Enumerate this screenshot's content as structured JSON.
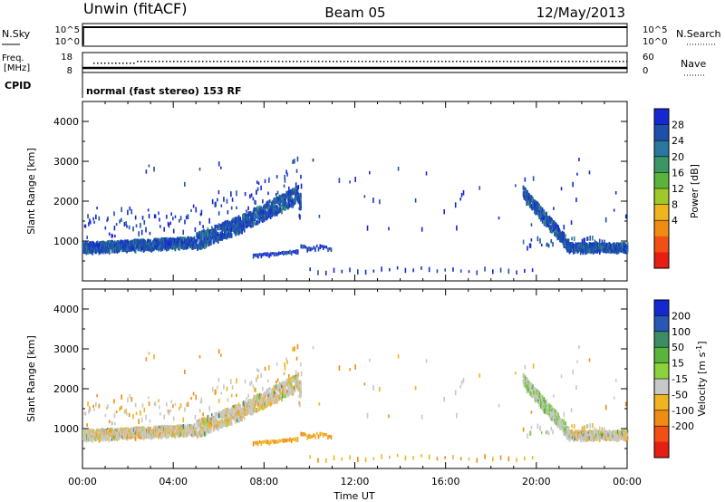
{
  "header": {
    "station": "Unwin (fitACF)",
    "beam": "Beam 05",
    "date": "12/May/2013"
  },
  "nsky_panel": {
    "left_label": "N.Sky",
    "right_label": "N.Search",
    "tick_top_left": "10^5",
    "tick_bottom_left": "10^0",
    "tick_top_right": "10^5",
    "tick_bottom_right": "10^0"
  },
  "freq_panel": {
    "left_label_line1": "Freq.",
    "left_label_line2": "[MHz]",
    "tick_top_left": "18",
    "tick_bottom_left": "8",
    "right_label": "Nave",
    "tick_top_right": "60",
    "tick_bottom_right": "0"
  },
  "cpid_panel": {
    "left_label": "CPID",
    "mode_text": "normal (fast stereo) 153 RF"
  },
  "colors": {
    "power": [
      "#1428d2",
      "#1e50aa",
      "#2878a0",
      "#3c9664",
      "#5ab43c",
      "#a0c828",
      "#f0b41e",
      "#f08c14",
      "#f05014",
      "#e61e14"
    ],
    "velocity": [
      "#1428d2",
      "#2858b4",
      "#3c8c64",
      "#5ab43c",
      "#8cd23c",
      "#c8c8c8",
      "#f0b41e",
      "#f08c14",
      "#f05014",
      "#e61e14"
    ]
  },
  "chart_data": [
    {
      "type": "heatmap",
      "name": "power-panel",
      "ylabel": "Slant Range [km]",
      "ylim": [
        0,
        4500
      ],
      "y_ticks": [
        "1000",
        "2000",
        "3000",
        "4000"
      ],
      "x_ticks": [],
      "colorbar": {
        "label": "Power [dB]",
        "ticks": [
          "4",
          "8",
          "12",
          "16",
          "20",
          "24",
          "28"
        ]
      }
    },
    {
      "type": "heatmap",
      "name": "velocity-panel",
      "ylabel": "Slant Range [km]",
      "ylim": [
        0,
        4500
      ],
      "y_ticks": [
        "1000",
        "2000",
        "3000",
        "4000"
      ],
      "xlabel": "Time UT",
      "x_ticks": [
        "00:00",
        "04:00",
        "08:00",
        "12:00",
        "16:00",
        "20:00",
        "00:00"
      ],
      "colorbar": {
        "label_main": "Velocity",
        "label_unit": "[m s",
        "label_exp": "-1",
        "label_close": "]",
        "ticks": [
          "200",
          "100",
          "50",
          "15",
          "-15",
          "-50",
          "-100",
          "-200"
        ]
      }
    }
  ]
}
